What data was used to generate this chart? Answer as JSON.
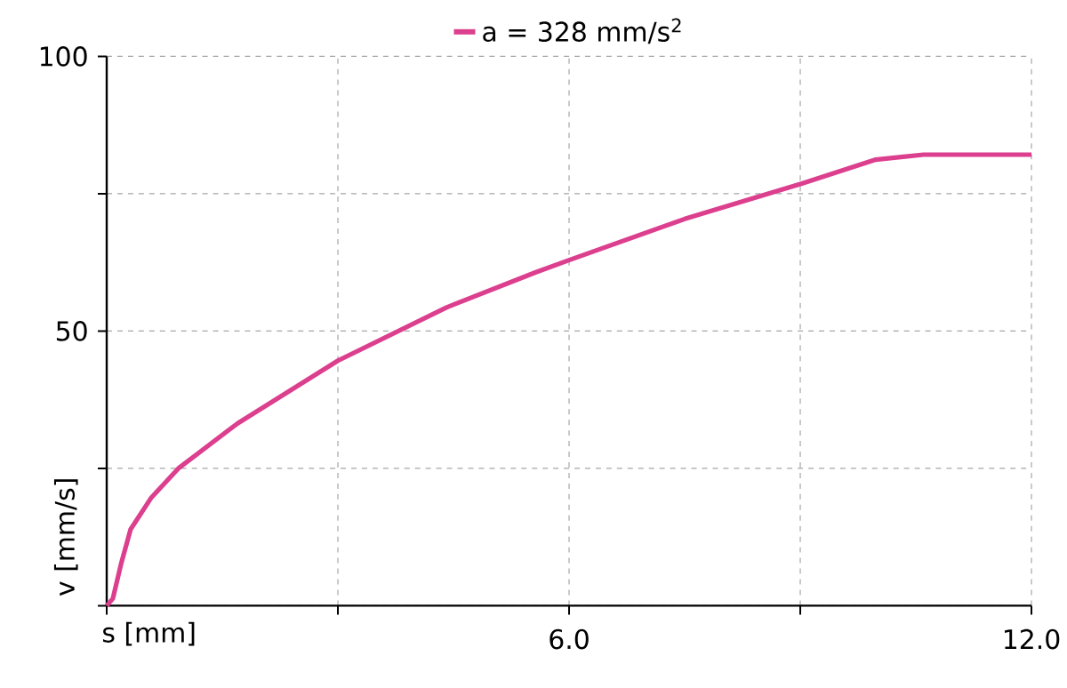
{
  "chart_data": {
    "type": "line",
    "xlabel": "s [mm]",
    "ylabel": "v [mm/s]",
    "xlim": [
      0,
      12
    ],
    "ylim": [
      0,
      100
    ],
    "xticks": [
      {
        "value": 0,
        "label": null
      },
      {
        "value": 3,
        "label": null
      },
      {
        "value": 6,
        "label": "6.0"
      },
      {
        "value": 9,
        "label": null
      },
      {
        "value": 12,
        "label": "12.0"
      }
    ],
    "yticks": [
      {
        "value": 0,
        "label": null
      },
      {
        "value": 25,
        "label": null
      },
      50,
      {
        "value": 75,
        "label": null
      },
      100
    ],
    "grid": true,
    "legend": "top",
    "series": [
      {
        "name": "a = 328 mm/s$^{2}$",
        "color": "#dc3f8e",
        "x": [
          0,
          0.08,
          0.19,
          0.31,
          0.58,
          0.93,
          1.7,
          3.0,
          4.41,
          5.57,
          6.0,
          7.5,
          9.03,
          9.98,
          10.6,
          12.0
        ],
        "values": [
          0,
          1.3,
          7.8,
          13.9,
          19.7,
          25,
          33.2,
          44.6,
          54.3,
          60.7,
          62.9,
          70.4,
          76.9,
          81.2,
          82.1,
          82.1
        ]
      }
    ]
  }
}
